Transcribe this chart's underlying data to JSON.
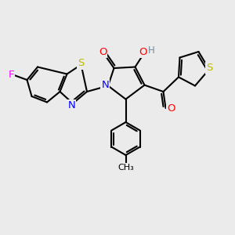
{
  "bg_color": "#ebebeb",
  "atom_colors": {
    "C": "#000000",
    "N": "#0000ff",
    "O": "#ff0000",
    "S": "#bbbb00",
    "F": "#ff00ff",
    "H": "#778899"
  },
  "bond_lw": 1.5,
  "font_size": 9.5,
  "fig_size": [
    3.0,
    3.0
  ],
  "dpi": 100
}
